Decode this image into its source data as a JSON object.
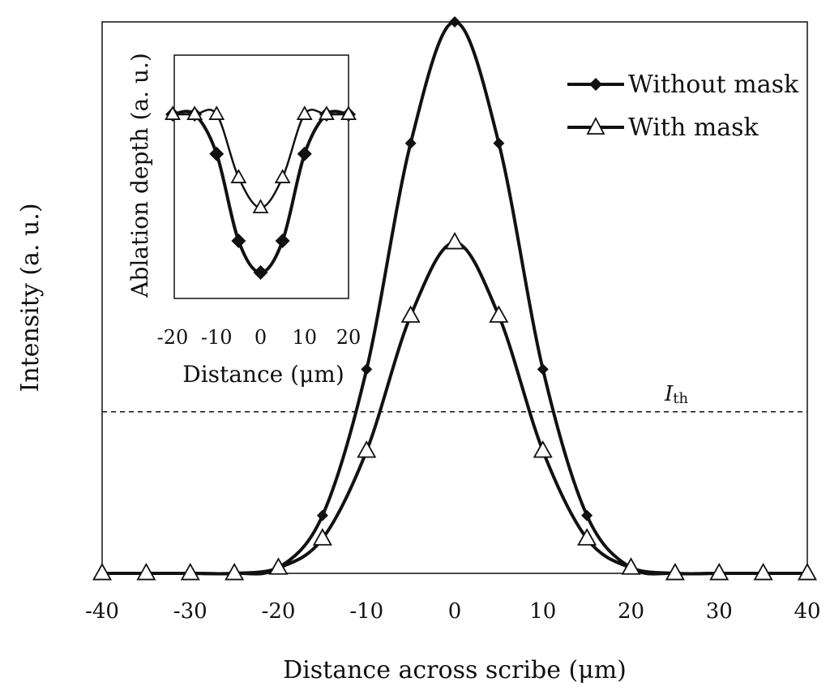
{
  "chart_data": [
    {
      "type": "line",
      "title": "",
      "xlabel": "Distance across scribe (μm)",
      "ylabel": "Intensity (a. u.)",
      "xlim": [
        -40,
        40
      ],
      "ylim": [
        0,
        1
      ],
      "xticks": [
        "-40",
        "-30",
        "-20",
        "-10",
        "0",
        "10",
        "20",
        "30",
        "40"
      ],
      "x": [
        -40,
        -35,
        -30,
        -25,
        -20,
        -15,
        -10,
        -5,
        0,
        5,
        10,
        15,
        20,
        25,
        30,
        35,
        40
      ],
      "series": [
        {
          "name": "Without mask",
          "marker": "diamond-filled",
          "values": [
            0,
            0,
            0,
            0,
            0.01,
            0.105,
            0.37,
            0.78,
            1.0,
            0.78,
            0.37,
            0.105,
            0.01,
            0,
            0,
            0,
            0
          ]
        },
        {
          "name": "With mask",
          "marker": "triangle-open",
          "values": [
            0,
            0,
            0,
            0,
            0.01,
            0.063,
            0.222,
            0.467,
            0.6,
            0.467,
            0.222,
            0.063,
            0.01,
            0,
            0,
            0,
            0
          ]
        }
      ],
      "threshold": {
        "label": "I",
        "label_sub": "th",
        "value": 0.293,
        "style": "dashed"
      },
      "legend": "top-right",
      "grid": false
    },
    {
      "type": "line",
      "title": "",
      "xlabel": "Distance (μm)",
      "ylabel": "Ablation depth (a. u.)",
      "xlim": [
        -20,
        20
      ],
      "xticks": [
        "-20",
        "-10",
        "0",
        "10",
        "20"
      ],
      "x": [
        -20,
        -15,
        -10,
        -5,
        0,
        5,
        10,
        15,
        20
      ],
      "series": [
        {
          "marker": "diamond-filled",
          "values": [
            0,
            0,
            -0.25,
            -0.8,
            -1.0,
            -0.8,
            -0.25,
            0,
            0
          ]
        },
        {
          "marker": "triangle-open",
          "values": [
            0,
            0,
            0,
            -0.4,
            -0.59,
            -0.4,
            0,
            0,
            0
          ]
        }
      ],
      "inset": true
    }
  ]
}
